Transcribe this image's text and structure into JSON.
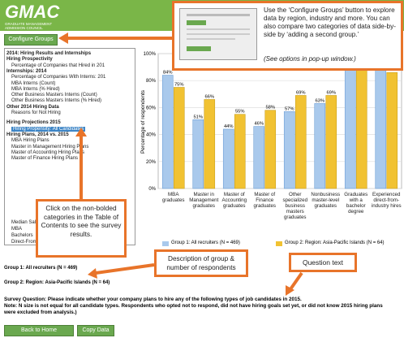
{
  "header": {
    "logo": "GMAC",
    "org": "GRADUATE MANAGEMENT ADMISSION COUNCIL"
  },
  "buttons": {
    "configure": "Configure Groups",
    "home": "Back to Home",
    "copy": "Copy Data"
  },
  "toc": {
    "items": [
      {
        "text": "2014: Hiring Results and Internships",
        "bold": true
      },
      {
        "text": "Hiring Prospectivity",
        "bold": true
      },
      {
        "text": "Percentage of Companies that Hired in 201",
        "bold": false
      },
      {
        "text": "Internships: 2014",
        "bold": true
      },
      {
        "text": "Percentage of Companies With Interns: 201",
        "bold": false
      },
      {
        "text": "MBA Interns (Count)",
        "bold": false
      },
      {
        "text": "MBA Interns (% Hired)",
        "bold": false
      },
      {
        "text": "Other Business Masters Interns (Count)",
        "bold": false
      },
      {
        "text": "Other Business Masters Interns (% Hired)",
        "bold": false
      },
      {
        "text": "Other 2014 Hiring Data",
        "bold": true
      },
      {
        "text": "Reasons for Not Hiring",
        "bold": false
      },
      {
        "text": "Hiring Projections 2015",
        "bold": true
      },
      {
        "text": "Hiring Propensity: All Candidates",
        "bold": false,
        "selected": true
      },
      {
        "text": "Hiring Plans, 2014 vs. 2015",
        "bold": true
      },
      {
        "text": "MBA Hiring Plans",
        "bold": false
      },
      {
        "text": "Master in Management Hiring Plans",
        "bold": false
      },
      {
        "text": "Master of Accounting Hiring Plans",
        "bold": false
      },
      {
        "text": "Master of Finance Hiring Plans",
        "bold": false
      },
      {
        "text": "Median Salaries",
        "bold": false
      },
      {
        "text": "MBA",
        "bold": false
      },
      {
        "text": "Bachelors",
        "bold": false
      },
      {
        "text": "Direct-From-Industry Hires",
        "bold": false
      }
    ]
  },
  "chart_data": {
    "type": "bar",
    "y_label": "Percentage of respondents",
    "categories": [
      "MBA graduates",
      "Master in Management graduates",
      "Master of Accounting graduates",
      "Master of Finance graduates",
      "Other specialized business masters graduates",
      "Nonbusiness master-level graduates",
      "Graduates with a bachelor degree",
      "Experienced direct-from-industry hires"
    ],
    "series": [
      {
        "name": "Group 1: All recruiters (N = 469)",
        "color": "#a9c9ec",
        "values": [
          84,
          51,
          44,
          46,
          57,
          63,
          92,
          88
        ],
        "value_labels": [
          "84%",
          "51%",
          "44%",
          "46%",
          "57%",
          "63%",
          null,
          null
        ]
      },
      {
        "name": "Group 2: Region: Asia-Pacific Islands (N = 64)",
        "color": "#f1c232",
        "values": [
          75,
          66,
          55,
          58,
          69,
          69,
          90,
          86
        ],
        "value_labels": [
          "75%",
          "66%",
          "55%",
          "58%",
          "69%",
          "69%",
          null,
          "86%"
        ]
      }
    ],
    "ylim": [
      0,
      100
    ],
    "yticks": [
      {
        "value": 0,
        "label": "0%"
      },
      {
        "value": 20,
        "label": "20%"
      },
      {
        "value": 40,
        "label": "40%"
      },
      {
        "value": 60,
        "label": "60%"
      },
      {
        "value": 80,
        "label": "80%"
      },
      {
        "value": 100,
        "label": "100%"
      }
    ],
    "grid": true
  },
  "groups": [
    "Group 1: All recruiters (N = 469)",
    "Group 2: Region: Asia-Pacific Islands (N = 64)"
  ],
  "question": "Survey Question: Please indicate whether your company plans to hire any of the following types of job candidates in 2015.",
  "note": "Note: N size is not equal for all candidate types. Respondents who opted not to respond, did not have hiring goals set yet, or did not know 2015 hiring plans were excluded from analysis.)",
  "callouts": {
    "configure": "Use the ‘Configure Groups’ button to explore data by region, industry and more. You can also compare two categories of data side-by-side by ‘adding a second group.’",
    "configure_note": "(See options in pop-up window.)",
    "toc": "Click on the non-bolded categories in the Table of Contents to see the survey results.",
    "groups": "Description of group & number of respondents",
    "question": "Question text"
  }
}
